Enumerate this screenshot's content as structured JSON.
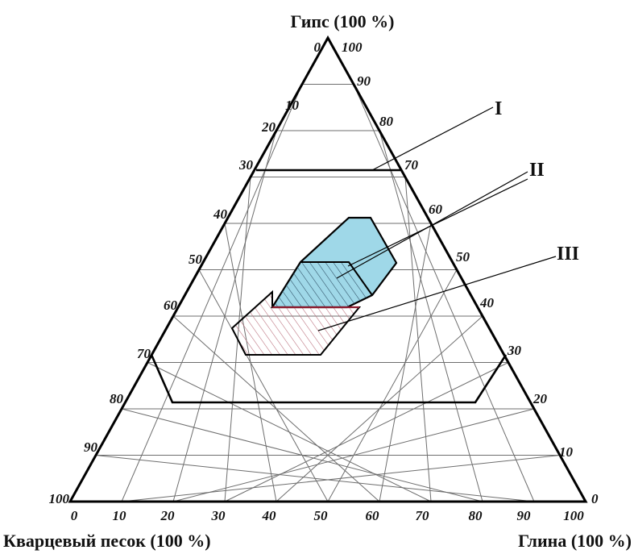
{
  "vertices": {
    "top": "Гипс (100 %)",
    "left": "Кварцевый песок (100 %)",
    "right": "Глина (100 %)"
  },
  "ticks": {
    "bottom": [
      "0",
      "10",
      "20",
      "30",
      "40",
      "50",
      "60",
      "70",
      "80",
      "90",
      "100"
    ],
    "left": [
      "0",
      "10",
      "20",
      "30",
      "40",
      "50",
      "60",
      "70",
      "80",
      "90",
      "100"
    ],
    "right": [
      "100",
      "90",
      "80",
      "70",
      "60",
      "50",
      "40",
      "30",
      "20",
      "10",
      "0"
    ]
  },
  "region_labels": [
    "I",
    "II",
    "III"
  ],
  "colors": {
    "grid": "#6e6e6e",
    "frame": "#000000",
    "region2_fill": "#9fd8e8",
    "region2_hatch": "#2a4a60",
    "region3_hatch": "#b86a78",
    "region3_border": "#8b1a2e"
  }
}
